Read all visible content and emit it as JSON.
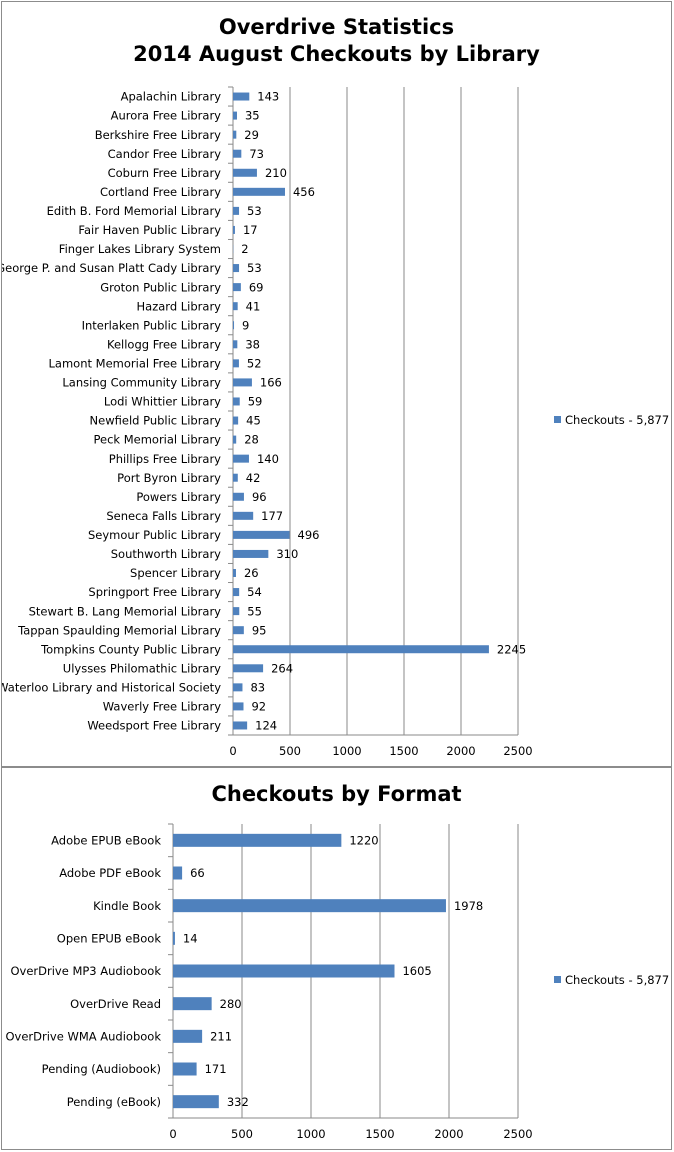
{
  "chart_data": [
    {
      "type": "bar",
      "orientation": "horizontal",
      "title": [
        "Overdrive Statistics",
        "2014 August Checkouts by Library"
      ],
      "categories": [
        "Apalachin Library",
        "Aurora Free Library",
        "Berkshire Free Library",
        "Candor Free Library",
        "Coburn Free Library",
        "Cortland Free Library",
        "Edith B. Ford Memorial Library",
        "Fair Haven Public Library",
        "Finger Lakes Library System",
        "George P. and Susan Platt Cady Library",
        "Groton Public Library",
        "Hazard Library",
        "Interlaken Public Library",
        "Kellogg Free Library",
        "Lamont Memorial Free Library",
        "Lansing Community Library",
        "Lodi Whittier Library",
        "Newfield Public Library",
        "Peck Memorial Library",
        "Phillips Free Library",
        "Port Byron Library",
        "Powers Library",
        "Seneca Falls Library",
        "Seymour Public Library",
        "Southworth Library",
        "Spencer Library",
        "Springport Free Library",
        "Stewart B. Lang Memorial Library",
        "Tappan Spaulding Memorial Library",
        "Tompkins County Public Library",
        "Ulysses Philomathic Library",
        "Waterloo Library and Historical Society",
        "Waverly Free Library",
        "Weedsport Free Library"
      ],
      "series": [
        {
          "name": "Checkouts - 5,877",
          "values": [
            143,
            35,
            29,
            73,
            210,
            456,
            53,
            17,
            2,
            53,
            69,
            41,
            9,
            38,
            52,
            166,
            59,
            45,
            28,
            140,
            42,
            96,
            177,
            496,
            310,
            26,
            54,
            55,
            95,
            2245,
            264,
            83,
            92,
            124
          ]
        }
      ],
      "xlim": [
        0,
        2500
      ],
      "xticks": [
        0,
        500,
        1000,
        1500,
        2000,
        2500
      ],
      "grid": true,
      "legend_position": "right",
      "color": "#4f81bd"
    },
    {
      "type": "bar",
      "orientation": "horizontal",
      "title": [
        "Checkouts by Format"
      ],
      "categories": [
        "Adobe EPUB eBook",
        "Adobe PDF eBook",
        "Kindle Book",
        "Open EPUB eBook",
        "OverDrive MP3 Audiobook",
        "OverDrive Read",
        "OverDrive WMA Audiobook",
        "Pending (Audiobook)",
        "Pending (eBook)"
      ],
      "series": [
        {
          "name": "Checkouts - 5,877",
          "values": [
            1220,
            66,
            1978,
            14,
            1605,
            280,
            211,
            171,
            332
          ]
        }
      ],
      "xlim": [
        0,
        2500
      ],
      "xticks": [
        0,
        500,
        1000,
        1500,
        2000,
        2500
      ],
      "grid": true,
      "legend_position": "right",
      "color": "#4f81bd"
    }
  ]
}
